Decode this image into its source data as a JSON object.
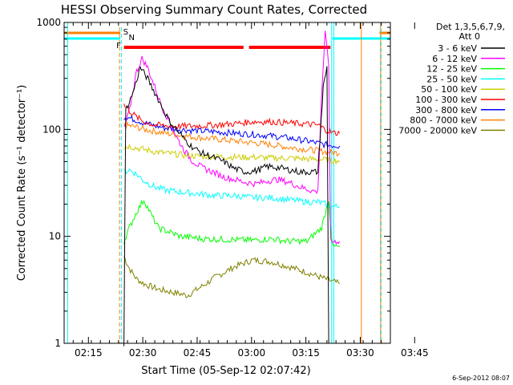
{
  "chart_data": {
    "type": "line",
    "title": "HESSI Observing Summary Count Rates, Corrected",
    "xlabel": "Start Time (05-Sep-12 02:07:42)",
    "ylabel": "Corrected Count Rate (s⁻¹ detector⁻¹)",
    "yscale": "log",
    "ylim": [
      1,
      1000
    ],
    "xlim_minutes": [
      8,
      98
    ],
    "x_ticks": [
      "02:15",
      "02:30",
      "02:45",
      "03:00",
      "03:15",
      "03:30",
      "03:45"
    ],
    "y_ticks": [
      "1",
      "10",
      "100",
      "1000"
    ],
    "legend": {
      "header1": "Det 1,3,5,6,7,9,",
      "header2": "Att 0",
      "placement": "top-right outside"
    },
    "series": [
      {
        "name": "3 - 6 keV",
        "color": "#000000",
        "points": [
          [
            24.5,
            1
          ],
          [
            25,
            150
          ],
          [
            27,
            220
          ],
          [
            29,
            380
          ],
          [
            31,
            300
          ],
          [
            34,
            190
          ],
          [
            37,
            120
          ],
          [
            40,
            90
          ],
          [
            43,
            70
          ],
          [
            46,
            60
          ],
          [
            49,
            55
          ],
          [
            52,
            50
          ],
          [
            55,
            43
          ],
          [
            58,
            40
          ],
          [
            61,
            41
          ],
          [
            64,
            45
          ],
          [
            67,
            44
          ],
          [
            70,
            42
          ],
          [
            73,
            40
          ],
          [
            76,
            40
          ],
          [
            78,
            40
          ],
          [
            79.5,
            250
          ],
          [
            80.5,
            380
          ],
          [
            81,
            1
          ]
        ]
      },
      {
        "name": "6 - 12 keV",
        "color": "#ff00ff",
        "points": [
          [
            24.5,
            100
          ],
          [
            26,
            150
          ],
          [
            28,
            350
          ],
          [
            29.5,
            460
          ],
          [
            31,
            380
          ],
          [
            33,
            250
          ],
          [
            35,
            160
          ],
          [
            37,
            120
          ],
          [
            39,
            85
          ],
          [
            41,
            65
          ],
          [
            43,
            52
          ],
          [
            46,
            44
          ],
          [
            49,
            40
          ],
          [
            52,
            36
          ],
          [
            55,
            34
          ],
          [
            58,
            32
          ],
          [
            61,
            31
          ],
          [
            64,
            33
          ],
          [
            67,
            34
          ],
          [
            70,
            32
          ],
          [
            73,
            29
          ],
          [
            76,
            27
          ],
          [
            78,
            26
          ],
          [
            79,
            200
          ],
          [
            80,
            800
          ],
          [
            81,
            400
          ],
          [
            81.5,
            9
          ],
          [
            84,
            9
          ]
        ]
      },
      {
        "name": "12 - 25 keV",
        "color": "#00ff00",
        "points": [
          [
            24.5,
            9
          ],
          [
            26,
            12
          ],
          [
            28,
            17
          ],
          [
            30,
            22
          ],
          [
            32,
            16
          ],
          [
            34,
            12
          ],
          [
            37,
            11
          ],
          [
            40,
            10
          ],
          [
            43,
            9.8
          ],
          [
            46,
            9.5
          ],
          [
            50,
            9.4
          ],
          [
            55,
            9.3
          ],
          [
            60,
            9.2
          ],
          [
            65,
            9.5
          ],
          [
            70,
            9
          ],
          [
            75,
            9
          ],
          [
            79,
            12
          ],
          [
            81,
            22
          ],
          [
            82,
            8
          ],
          [
            84,
            8
          ]
        ]
      },
      {
        "name": "25 - 50 keV",
        "color": "#00ffff",
        "points": [
          [
            24.5,
            40
          ],
          [
            26,
            42
          ],
          [
            28,
            38
          ],
          [
            30,
            33
          ],
          [
            33,
            29
          ],
          [
            36,
            27
          ],
          [
            40,
            26
          ],
          [
            45,
            25
          ],
          [
            50,
            24
          ],
          [
            55,
            24
          ],
          [
            60,
            23
          ],
          [
            65,
            23
          ],
          [
            70,
            22
          ],
          [
            75,
            21
          ],
          [
            78,
            21
          ],
          [
            80,
            20
          ],
          [
            82,
            19
          ],
          [
            84,
            19
          ]
        ]
      },
      {
        "name": "50 - 100 keV",
        "color": "#cccc00",
        "points": [
          [
            24.5,
            68
          ],
          [
            26,
            70
          ],
          [
            28,
            67
          ],
          [
            30,
            65
          ],
          [
            33,
            62
          ],
          [
            36,
            60
          ],
          [
            40,
            58
          ],
          [
            45,
            56
          ],
          [
            50,
            56
          ],
          [
            55,
            55
          ],
          [
            60,
            55
          ],
          [
            65,
            54
          ],
          [
            70,
            54
          ],
          [
            75,
            53
          ],
          [
            80,
            52
          ],
          [
            84,
            51
          ]
        ]
      },
      {
        "name": "100 - 300 keV",
        "color": "#ff0000",
        "points": [
          [
            24.5,
            170
          ],
          [
            26,
            150
          ],
          [
            28,
            130
          ],
          [
            30,
            118
          ],
          [
            33,
            110
          ],
          [
            36,
            108
          ],
          [
            40,
            107
          ],
          [
            45,
            108
          ],
          [
            50,
            110
          ],
          [
            55,
            113
          ],
          [
            60,
            118
          ],
          [
            65,
            118
          ],
          [
            70,
            115
          ],
          [
            75,
            112
          ],
          [
            78,
            110
          ],
          [
            80,
            100
          ],
          [
            82,
            93
          ],
          [
            84,
            92
          ]
        ]
      },
      {
        "name": "300 - 800 keV",
        "color": "#0000ff",
        "points": [
          [
            24.5,
            130
          ],
          [
            26,
            128
          ],
          [
            28,
            122
          ],
          [
            30,
            115
          ],
          [
            33,
            108
          ],
          [
            36,
            103
          ],
          [
            40,
            100
          ],
          [
            45,
            97
          ],
          [
            50,
            95
          ],
          [
            55,
            92
          ],
          [
            60,
            90
          ],
          [
            65,
            87
          ],
          [
            70,
            83
          ],
          [
            75,
            78
          ],
          [
            80,
            72
          ],
          [
            84,
            70
          ]
        ]
      },
      {
        "name": "800 - 7000 keV",
        "color": "#ff8000",
        "points": [
          [
            24.5,
            110
          ],
          [
            26,
            108
          ],
          [
            28,
            105
          ],
          [
            30,
            100
          ],
          [
            33,
            96
          ],
          [
            36,
            92
          ],
          [
            40,
            88
          ],
          [
            45,
            84
          ],
          [
            50,
            81
          ],
          [
            55,
            78
          ],
          [
            60,
            75
          ],
          [
            65,
            72
          ],
          [
            70,
            68
          ],
          [
            75,
            65
          ],
          [
            80,
            62
          ],
          [
            84,
            60
          ]
        ]
      },
      {
        "name": "7000 - 20000 keV",
        "color": "#808000",
        "points": [
          [
            24.5,
            6.5
          ],
          [
            26,
            5
          ],
          [
            28,
            4
          ],
          [
            30,
            3.6
          ],
          [
            34,
            3.2
          ],
          [
            38,
            3.0
          ],
          [
            42,
            2.8
          ],
          [
            46,
            3.4
          ],
          [
            50,
            4.2
          ],
          [
            55,
            5.2
          ],
          [
            60,
            6.0
          ],
          [
            65,
            5.8
          ],
          [
            70,
            5.2
          ],
          [
            75,
            4.6
          ],
          [
            80,
            4.0
          ],
          [
            84,
            3.6
          ]
        ]
      }
    ],
    "flags_top": {
      "S_label": "S",
      "N_label": "N",
      "F_label": "F"
    },
    "timestamp": "6-Sep-2012 08:07"
  }
}
